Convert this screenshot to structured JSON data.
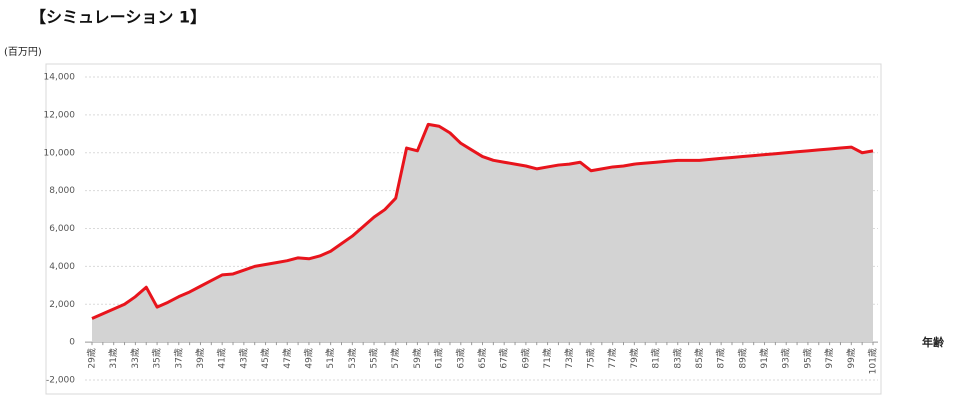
{
  "chart_data": {
    "type": "area",
    "title": "【シミュレーション 1】",
    "y_label": "(百万円)",
    "x_label": "年齢",
    "categories": [
      "29歳",
      null,
      "31歳",
      null,
      "33歳",
      null,
      "35歳",
      null,
      "37歳",
      null,
      "39歳",
      null,
      "41歳",
      null,
      "43歳",
      null,
      "45歳",
      null,
      "47歳",
      null,
      "49歳",
      null,
      "51歳",
      null,
      "53歳",
      null,
      "55歳",
      null,
      "57歳",
      null,
      "59歳",
      null,
      "61歳",
      null,
      "63歳",
      null,
      "65歳",
      null,
      "67歳",
      null,
      "69歳",
      null,
      "71歳",
      null,
      "73歳",
      null,
      "75歳",
      null,
      "77歳",
      null,
      "79歳",
      null,
      "81歳",
      null,
      "83歳",
      null,
      "85歳",
      null,
      "87歳",
      null,
      "89歳",
      null,
      "91歳",
      null,
      "93歳",
      null,
      "95歳",
      null,
      "97歳",
      null,
      "99歳",
      null,
      "101歳"
    ],
    "values": [
      1250,
      1500,
      1750,
      2000,
      2400,
      2900,
      1850,
      2100,
      2400,
      2650,
      2950,
      3250,
      3550,
      3600,
      3800,
      4000,
      4100,
      4200,
      4300,
      4450,
      4400,
      4550,
      4800,
      5200,
      5600,
      6100,
      6600,
      7000,
      7600,
      10250,
      10100,
      11500,
      11400,
      11050,
      10500,
      10150,
      9800,
      9600,
      9500,
      9400,
      9300,
      9150,
      9250,
      9350,
      9400,
      9500,
      9050,
      9150,
      9250,
      9300,
      9400,
      9450,
      9500,
      9550,
      9600,
      9600,
      9600,
      9650,
      9700,
      9750,
      9800,
      9850,
      9900,
      9950,
      10000,
      10050,
      10100,
      10150,
      10200,
      10250,
      10300,
      10000,
      10100
    ],
    "color": "#e8141c",
    "fill_color": "#d3d3d3",
    "negative_label_color": "#e00000",
    "ylim": [
      -2000,
      14000
    ],
    "yticks": [
      {
        "value": -2000,
        "label": "-2,000"
      },
      0,
      {
        "value": 2000,
        "label": "2,000"
      },
      {
        "value": 4000,
        "label": "4,000"
      },
      {
        "value": 6000,
        "label": "6,000"
      },
      {
        "value": 8000,
        "label": "8,000"
      },
      {
        "value": 10000,
        "label": "10,000"
      },
      {
        "value": 12000,
        "label": "12,000"
      },
      {
        "value": 14000,
        "label": "14,000"
      }
    ],
    "grid": true
  }
}
